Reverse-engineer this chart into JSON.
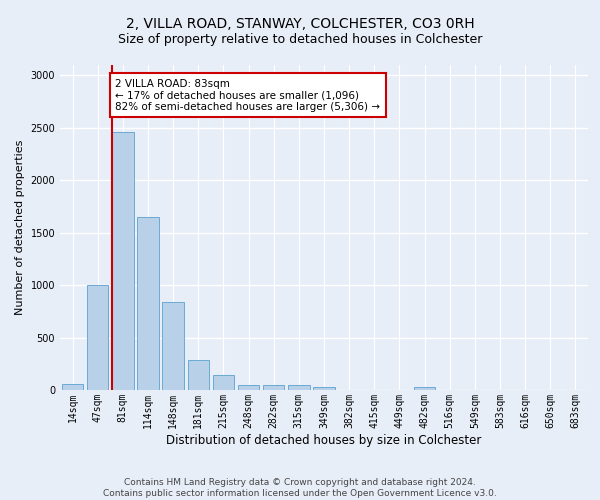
{
  "title": "2, VILLA ROAD, STANWAY, COLCHESTER, CO3 0RH",
  "subtitle": "Size of property relative to detached houses in Colchester",
  "xlabel": "Distribution of detached houses by size in Colchester",
  "ylabel": "Number of detached properties",
  "categories": [
    "14sqm",
    "47sqm",
    "81sqm",
    "114sqm",
    "148sqm",
    "181sqm",
    "215sqm",
    "248sqm",
    "282sqm",
    "315sqm",
    "349sqm",
    "382sqm",
    "415sqm",
    "449sqm",
    "482sqm",
    "516sqm",
    "549sqm",
    "583sqm",
    "616sqm",
    "650sqm",
    "683sqm"
  ],
  "values": [
    60,
    1000,
    2460,
    1650,
    840,
    290,
    145,
    45,
    45,
    45,
    30,
    0,
    0,
    0,
    25,
    0,
    0,
    0,
    0,
    0,
    0
  ],
  "bar_color": "#b8d0e8",
  "bar_edgecolor": "#6aaad4",
  "marker_idx": 2,
  "marker_color": "#cc0000",
  "annotation_text": "2 VILLA ROAD: 83sqm\n← 17% of detached houses are smaller (1,096)\n82% of semi-detached houses are larger (5,306) →",
  "annotation_box_color": "#ffffff",
  "annotation_box_edgecolor": "#cc0000",
  "ylim": [
    0,
    3100
  ],
  "yticks": [
    0,
    500,
    1000,
    1500,
    2000,
    2500,
    3000
  ],
  "background_color": "#e8eef8",
  "grid_color": "#ffffff",
  "footer_line1": "Contains HM Land Registry data © Crown copyright and database right 2024.",
  "footer_line2": "Contains public sector information licensed under the Open Government Licence v3.0.",
  "title_fontsize": 10,
  "subtitle_fontsize": 9,
  "xlabel_fontsize": 8.5,
  "ylabel_fontsize": 8,
  "tick_fontsize": 7,
  "footer_fontsize": 6.5
}
